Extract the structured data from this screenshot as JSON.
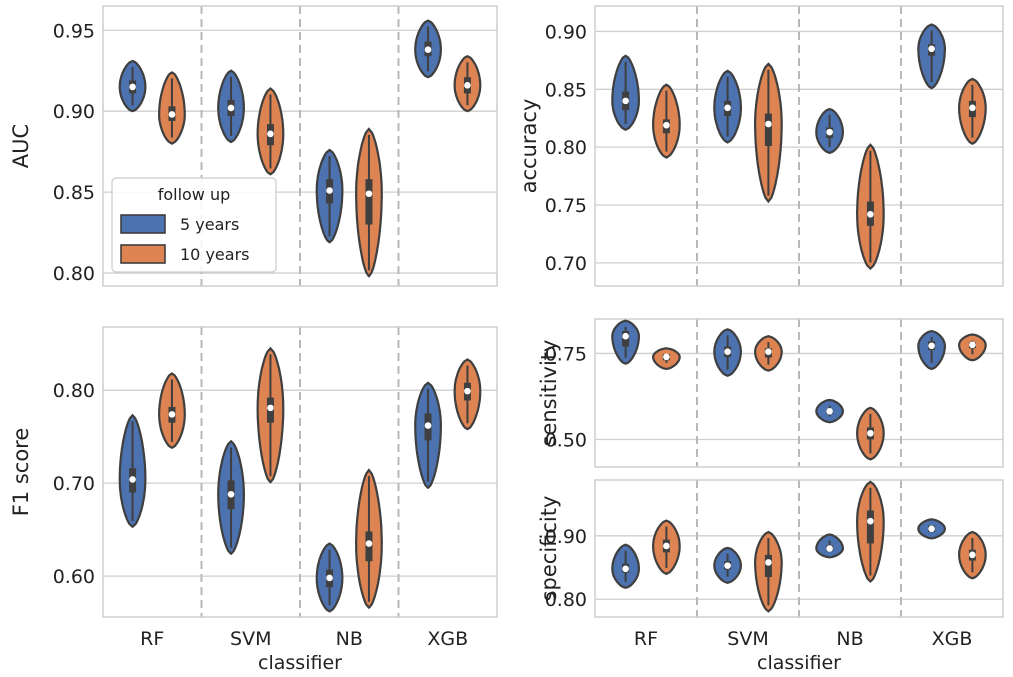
{
  "colors": {
    "five_years": "#4c72b0",
    "ten_years": "#dd8452",
    "edge": "#3f3f3f",
    "grid": "#cfcfcf",
    "divider": "#b8b8b8"
  },
  "legend": {
    "title": "follow up",
    "entries": [
      "5 years",
      "10 years"
    ],
    "placement": "lower-left of AUC panel"
  },
  "chart_data": [
    {
      "id": "auc",
      "type": "violin",
      "ylabel": "AUC",
      "categories": [
        "RF",
        "SVM",
        "NB",
        "XGB"
      ],
      "ylim": [
        0.792,
        0.965
      ],
      "yticks": [
        0.8,
        0.85,
        0.9,
        0.95
      ],
      "yticklabels": [
        "0.80",
        "0.85",
        "0.90",
        "0.95"
      ],
      "series": [
        {
          "name": "5 years",
          "violins": [
            {
              "min": 0.9,
              "q1": 0.911,
              "median": 0.915,
              "q3": 0.919,
              "max": 0.931
            },
            {
              "min": 0.881,
              "q1": 0.897,
              "median": 0.902,
              "q3": 0.907,
              "max": 0.925
            },
            {
              "min": 0.819,
              "q1": 0.843,
              "median": 0.851,
              "q3": 0.858,
              "max": 0.876
            },
            {
              "min": 0.921,
              "q1": 0.934,
              "median": 0.938,
              "q3": 0.943,
              "max": 0.956
            }
          ]
        },
        {
          "name": "10 years",
          "violins": [
            {
              "min": 0.88,
              "q1": 0.894,
              "median": 0.898,
              "q3": 0.903,
              "max": 0.924
            },
            {
              "min": 0.861,
              "q1": 0.879,
              "median": 0.886,
              "q3": 0.892,
              "max": 0.914
            },
            {
              "min": 0.798,
              "q1": 0.83,
              "median": 0.849,
              "q3": 0.858,
              "max": 0.889
            },
            {
              "min": 0.9,
              "q1": 0.911,
              "median": 0.916,
              "q3": 0.921,
              "max": 0.934
            }
          ]
        }
      ]
    },
    {
      "id": "accuracy",
      "type": "violin",
      "ylabel": "accuracy",
      "categories": [
        "RF",
        "SVM",
        "NB",
        "XGB"
      ],
      "ylim": [
        0.68,
        0.922
      ],
      "yticks": [
        0.7,
        0.75,
        0.8,
        0.85,
        0.9
      ],
      "yticklabels": [
        "0.70",
        "0.75",
        "0.80",
        "0.85",
        "0.90"
      ],
      "series": [
        {
          "name": "5 years",
          "violins": [
            {
              "min": 0.815,
              "q1": 0.832,
              "median": 0.84,
              "q3": 0.848,
              "max": 0.879
            },
            {
              "min": 0.804,
              "q1": 0.827,
              "median": 0.834,
              "q3": 0.84,
              "max": 0.866
            },
            {
              "min": 0.795,
              "q1": 0.808,
              "median": 0.813,
              "q3": 0.817,
              "max": 0.833
            },
            {
              "min": 0.851,
              "q1": 0.879,
              "median": 0.885,
              "q3": 0.889,
              "max": 0.906
            }
          ]
        },
        {
          "name": "10 years",
          "violins": [
            {
              "min": 0.791,
              "q1": 0.812,
              "median": 0.819,
              "q3": 0.824,
              "max": 0.854
            },
            {
              "min": 0.753,
              "q1": 0.801,
              "median": 0.82,
              "q3": 0.829,
              "max": 0.872
            },
            {
              "min": 0.695,
              "q1": 0.732,
              "median": 0.742,
              "q3": 0.753,
              "max": 0.802
            },
            {
              "min": 0.803,
              "q1": 0.826,
              "median": 0.834,
              "q3": 0.84,
              "max": 0.859
            }
          ]
        }
      ]
    },
    {
      "id": "f1",
      "type": "violin",
      "ylabel": "F1 score",
      "categories": [
        "RF",
        "SVM",
        "NB",
        "XGB"
      ],
      "ylim": [
        0.556,
        0.868
      ],
      "yticks": [
        0.6,
        0.7,
        0.8
      ],
      "yticklabels": [
        "0.60",
        "0.70",
        "0.80"
      ],
      "series": [
        {
          "name": "5 years",
          "violins": [
            {
              "min": 0.653,
              "q1": 0.69,
              "median": 0.704,
              "q3": 0.716,
              "max": 0.773
            },
            {
              "min": 0.624,
              "q1": 0.672,
              "median": 0.688,
              "q3": 0.703,
              "max": 0.745
            },
            {
              "min": 0.562,
              "q1": 0.588,
              "median": 0.598,
              "q3": 0.607,
              "max": 0.635
            },
            {
              "min": 0.695,
              "q1": 0.746,
              "median": 0.762,
              "q3": 0.775,
              "max": 0.808
            }
          ]
        },
        {
          "name": "10 years",
          "violins": [
            {
              "min": 0.738,
              "q1": 0.765,
              "median": 0.774,
              "q3": 0.782,
              "max": 0.818
            },
            {
              "min": 0.701,
              "q1": 0.765,
              "median": 0.781,
              "q3": 0.792,
              "max": 0.845
            },
            {
              "min": 0.566,
              "q1": 0.616,
              "median": 0.635,
              "q3": 0.648,
              "max": 0.714
            },
            {
              "min": 0.758,
              "q1": 0.789,
              "median": 0.799,
              "q3": 0.808,
              "max": 0.833
            }
          ]
        }
      ]
    },
    {
      "id": "sensitivity",
      "type": "violin",
      "ylabel": "sensitivity",
      "categories": [
        "RF",
        "SVM",
        "NB",
        "XGB"
      ],
      "ylim": [
        0.42,
        0.85
      ],
      "yticks": [
        0.5,
        0.75
      ],
      "yticklabels": [
        "0.50",
        "0.75"
      ],
      "series": [
        {
          "name": "5 years",
          "violins": [
            {
              "min": 0.72,
              "q1": 0.77,
              "median": 0.8,
              "q3": 0.815,
              "max": 0.845
            },
            {
              "min": 0.685,
              "q1": 0.74,
              "median": 0.755,
              "q3": 0.77,
              "max": 0.82
            },
            {
              "min": 0.55,
              "q1": 0.575,
              "median": 0.582,
              "q3": 0.588,
              "max": 0.615
            },
            {
              "min": 0.705,
              "q1": 0.76,
              "median": 0.772,
              "q3": 0.785,
              "max": 0.815
            }
          ]
        },
        {
          "name": "10 years",
          "violins": [
            {
              "min": 0.705,
              "q1": 0.73,
              "median": 0.74,
              "q3": 0.748,
              "max": 0.765
            },
            {
              "min": 0.7,
              "q1": 0.738,
              "median": 0.755,
              "q3": 0.765,
              "max": 0.8
            },
            {
              "min": 0.442,
              "q1": 0.5,
              "median": 0.518,
              "q3": 0.535,
              "max": 0.592
            },
            {
              "min": 0.73,
              "q1": 0.765,
              "median": 0.775,
              "q3": 0.782,
              "max": 0.805
            }
          ]
        }
      ]
    },
    {
      "id": "specificity",
      "type": "violin",
      "ylabel": "specificity",
      "categories": [
        "RF",
        "SVM",
        "NB",
        "XGB"
      ],
      "ylim": [
        0.772,
        0.988
      ],
      "yticks": [
        0.8,
        0.9
      ],
      "yticklabels": [
        "0.80",
        "0.90"
      ],
      "series": [
        {
          "name": "5 years",
          "violins": [
            {
              "min": 0.818,
              "q1": 0.842,
              "median": 0.848,
              "q3": 0.856,
              "max": 0.886
            },
            {
              "min": 0.826,
              "q1": 0.847,
              "median": 0.853,
              "q3": 0.86,
              "max": 0.881
            },
            {
              "min": 0.866,
              "q1": 0.876,
              "median": 0.88,
              "q3": 0.885,
              "max": 0.902
            },
            {
              "min": 0.896,
              "q1": 0.906,
              "median": 0.911,
              "q3": 0.916,
              "max": 0.926
            }
          ]
        },
        {
          "name": "10 years",
          "violins": [
            {
              "min": 0.84,
              "q1": 0.874,
              "median": 0.884,
              "q3": 0.894,
              "max": 0.924
            },
            {
              "min": 0.781,
              "q1": 0.835,
              "median": 0.858,
              "q3": 0.87,
              "max": 0.906
            },
            {
              "min": 0.828,
              "q1": 0.888,
              "median": 0.923,
              "q3": 0.94,
              "max": 0.985
            },
            {
              "min": 0.833,
              "q1": 0.861,
              "median": 0.87,
              "q3": 0.878,
              "max": 0.906
            }
          ]
        }
      ]
    }
  ],
  "xlabel": "classifier"
}
